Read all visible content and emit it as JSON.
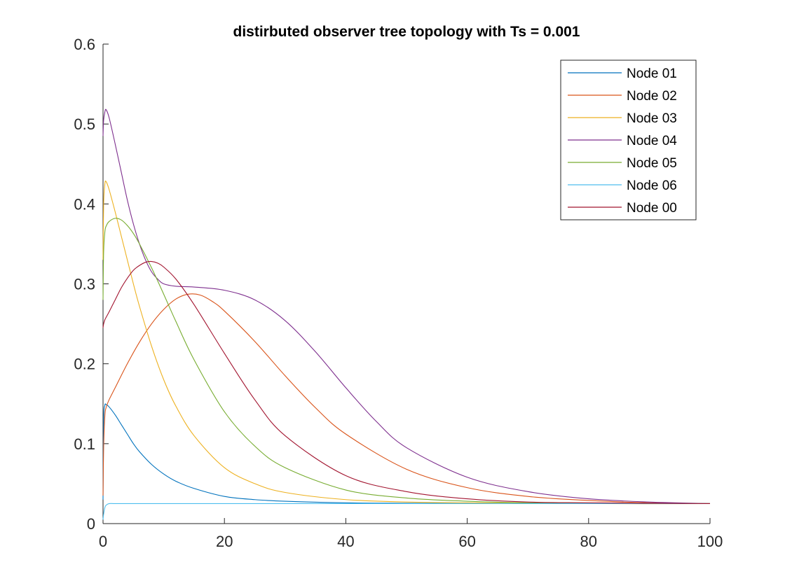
{
  "chart_data": {
    "type": "line",
    "title": "distirbuted observer tree topology with Ts = 0.001",
    "xlabel": "",
    "ylabel": "",
    "xlim": [
      0,
      100
    ],
    "ylim": [
      0,
      0.6
    ],
    "xticks": [
      0,
      20,
      40,
      60,
      80,
      100
    ],
    "xtick_labels": [
      "0",
      "20",
      "40",
      "60",
      "80",
      "100"
    ],
    "yticks": [
      0,
      0.1,
      0.2,
      0.3,
      0.4,
      0.5,
      0.6
    ],
    "ytick_labels": [
      "0",
      "0.1",
      "0.2",
      "0.3",
      "0.4",
      "0.5",
      "0.6"
    ],
    "grid": false,
    "legend_position": "top-right",
    "series": [
      {
        "name": "Node 01",
        "color": "#0072BD",
        "x": [
          0,
          0.1,
          0.3,
          0.5,
          1,
          2,
          3,
          4,
          5,
          6,
          8,
          10,
          12,
          15,
          20,
          25,
          30,
          40,
          50,
          60,
          80,
          100
        ],
        "y": [
          0.03,
          0.13,
          0.148,
          0.149,
          0.146,
          0.136,
          0.124,
          0.112,
          0.1,
          0.09,
          0.074,
          0.062,
          0.053,
          0.044,
          0.034,
          0.03,
          0.028,
          0.026,
          0.0255,
          0.0252,
          0.025,
          0.025
        ]
      },
      {
        "name": "Node 02",
        "color": "#D95319",
        "x": [
          0,
          0.1,
          0.3,
          0.5,
          1,
          2,
          4,
          6,
          8,
          10,
          12,
          14,
          16,
          18,
          20,
          25,
          30,
          35,
          40,
          50,
          60,
          70,
          80,
          90,
          100
        ],
        "y": [
          0.035,
          0.095,
          0.135,
          0.145,
          0.155,
          0.17,
          0.2,
          0.227,
          0.25,
          0.268,
          0.281,
          0.287,
          0.286,
          0.278,
          0.266,
          0.228,
          0.185,
          0.145,
          0.112,
          0.068,
          0.045,
          0.034,
          0.029,
          0.026,
          0.025
        ]
      },
      {
        "name": "Node 03",
        "color": "#EDB120",
        "x": [
          0,
          0.1,
          0.3,
          0.5,
          1,
          2,
          3,
          4,
          5,
          6,
          8,
          10,
          12,
          15,
          20,
          25,
          30,
          40,
          50,
          60,
          80,
          100
        ],
        "y": [
          0.33,
          0.4,
          0.425,
          0.428,
          0.418,
          0.39,
          0.36,
          0.33,
          0.3,
          0.272,
          0.222,
          0.18,
          0.147,
          0.11,
          0.07,
          0.05,
          0.039,
          0.03,
          0.027,
          0.026,
          0.025,
          0.025
        ]
      },
      {
        "name": "Node 04",
        "color": "#7E2F8E",
        "x": [
          0,
          0.1,
          0.3,
          0.5,
          1,
          2,
          3,
          4,
          5,
          6,
          7,
          8,
          9,
          10,
          12,
          15,
          20,
          25,
          30,
          35,
          40,
          45,
          50,
          60,
          70,
          80,
          90,
          100
        ],
        "y": [
          0.485,
          0.505,
          0.515,
          0.518,
          0.508,
          0.475,
          0.44,
          0.405,
          0.375,
          0.35,
          0.33,
          0.315,
          0.306,
          0.3,
          0.297,
          0.296,
          0.292,
          0.28,
          0.254,
          0.215,
          0.17,
          0.128,
          0.095,
          0.058,
          0.04,
          0.031,
          0.027,
          0.025
        ]
      },
      {
        "name": "Node 05",
        "color": "#77AC30",
        "x": [
          0,
          0.1,
          0.3,
          0.5,
          1,
          2,
          3,
          4,
          5,
          6,
          8,
          10,
          12,
          15,
          20,
          25,
          30,
          40,
          50,
          60,
          70,
          80,
          100
        ],
        "y": [
          0.28,
          0.34,
          0.365,
          0.372,
          0.378,
          0.382,
          0.38,
          0.373,
          0.363,
          0.35,
          0.32,
          0.287,
          0.253,
          0.205,
          0.14,
          0.097,
          0.07,
          0.042,
          0.032,
          0.028,
          0.026,
          0.025,
          0.025
        ]
      },
      {
        "name": "Node 06",
        "color": "#4DBEEE",
        "x": [
          0,
          0.1,
          0.3,
          0.5,
          1,
          2,
          5,
          10,
          20,
          40,
          60,
          80,
          100
        ],
        "y": [
          0.005,
          0.012,
          0.02,
          0.023,
          0.025,
          0.025,
          0.025,
          0.025,
          0.025,
          0.025,
          0.025,
          0.025,
          0.025
        ]
      },
      {
        "name": "Node 00",
        "color": "#A2142F",
        "x": [
          0,
          0.1,
          0.3,
          0.5,
          1,
          2,
          3,
          4,
          5,
          6,
          7,
          8,
          9,
          10,
          12,
          15,
          20,
          25,
          30,
          40,
          50,
          60,
          70,
          80,
          100
        ],
        "y": [
          0.245,
          0.25,
          0.255,
          0.258,
          0.265,
          0.28,
          0.295,
          0.307,
          0.317,
          0.323,
          0.327,
          0.328,
          0.326,
          0.321,
          0.306,
          0.274,
          0.213,
          0.155,
          0.11,
          0.06,
          0.04,
          0.031,
          0.027,
          0.026,
          0.025
        ]
      }
    ]
  }
}
